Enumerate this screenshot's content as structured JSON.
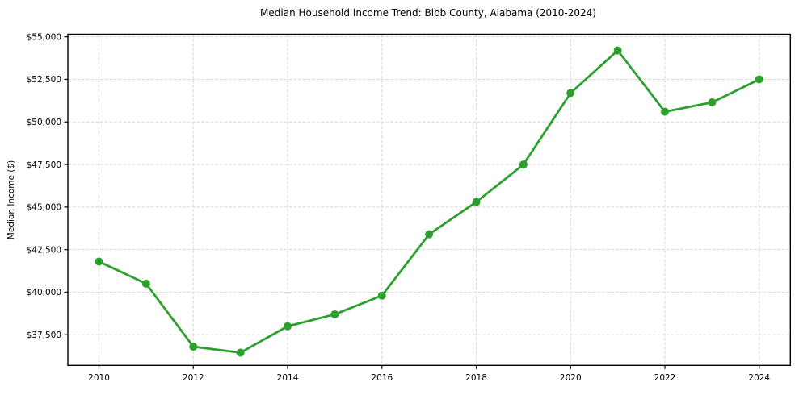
{
  "chart_data": {
    "type": "line",
    "title": "Median Household Income Trend: Bibb County, Alabama (2010-2024)",
    "xlabel": "",
    "ylabel": "Median Income ($)",
    "x": [
      2010,
      2011,
      2012,
      2013,
      2014,
      2015,
      2016,
      2017,
      2018,
      2019,
      2020,
      2021,
      2022,
      2023,
      2024
    ],
    "values": [
      41800,
      40500,
      36800,
      36450,
      38000,
      38700,
      39800,
      43400,
      45300,
      47500,
      51700,
      54200,
      50600,
      51150,
      52500
    ],
    "series_name": "Median Household Income",
    "xticks": {
      "values": [
        2010,
        2012,
        2014,
        2016,
        2018,
        2020,
        2022,
        2024
      ],
      "labels": [
        "2010",
        "2012",
        "2014",
        "2016",
        "2018",
        "2020",
        "2022",
        "2024"
      ]
    },
    "yticks": {
      "values": [
        37500,
        40000,
        42500,
        45000,
        47500,
        50000,
        52500,
        55000
      ],
      "labels": [
        "$37,500",
        "$40,000",
        "$42,500",
        "$45,000",
        "$47,500",
        "$50,000",
        "$52,500",
        "$55,000"
      ]
    },
    "xlim": [
      2009.34,
      2024.66
    ],
    "ylim": [
      35700,
      55150
    ],
    "grid": true,
    "grid_style": "dashed",
    "legend": "none",
    "line_color": "#2ca02c",
    "marker": "circle",
    "marker_color": "#2ca02c",
    "grid_color": "#d8d8d8",
    "axis_color": "#000000",
    "background": "#ffffff"
  }
}
